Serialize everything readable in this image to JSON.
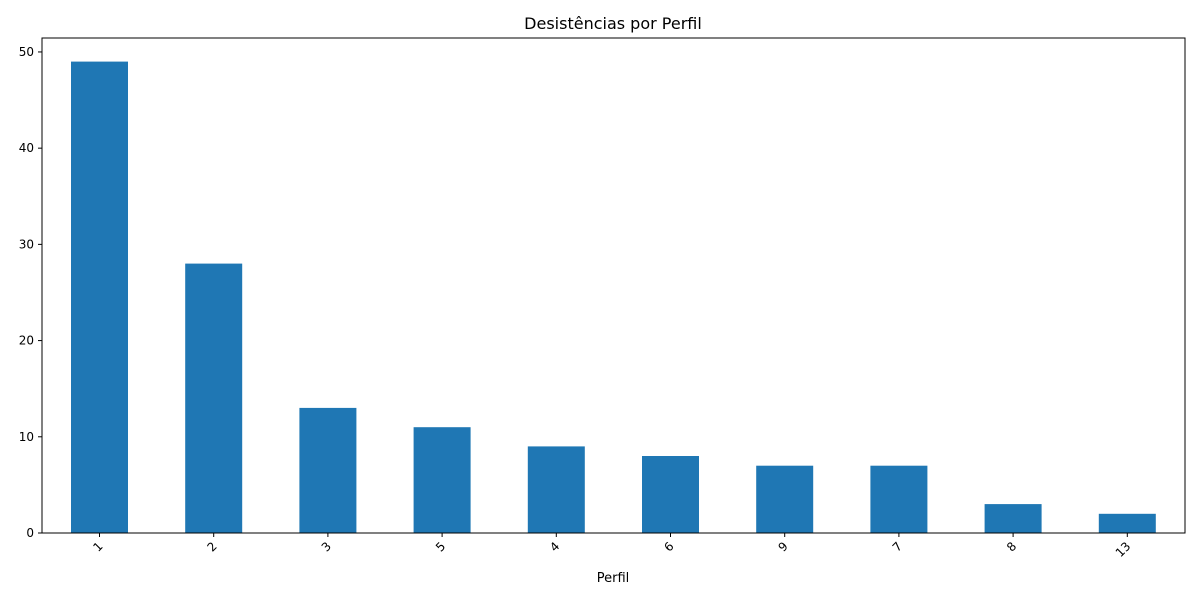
{
  "chart_data": {
    "type": "bar",
    "title": "Desistências por Perfil",
    "xlabel": "Perfil",
    "ylabel": "",
    "categories": [
      "1",
      "2",
      "3",
      "5",
      "4",
      "6",
      "9",
      "7",
      "8",
      "13"
    ],
    "values": [
      49,
      28,
      13,
      11,
      9,
      8,
      7,
      7,
      3,
      2
    ],
    "ylim": [
      0,
      51.45
    ],
    "yticks": [
      0,
      10,
      20,
      30,
      40,
      50
    ],
    "xtick_rotation_deg": 45,
    "grid": false,
    "legend": "none",
    "bar_color": "#1f77b4"
  }
}
